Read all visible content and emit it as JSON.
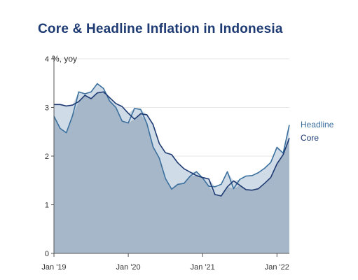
{
  "chart_data": {
    "type": "area",
    "title": "Core & Headline Inflation in Indonesia",
    "y_unit_label": "%, yoy",
    "ylim": [
      0,
      4
    ],
    "y_ticks": [
      0,
      1,
      2,
      3,
      4
    ],
    "x_ticks": [
      {
        "value": "2019-01",
        "label": "Jan '19"
      },
      {
        "value": "2020-01",
        "label": "Jan '20"
      },
      {
        "value": "2021-01",
        "label": "Jan '21"
      },
      {
        "value": "2022-01",
        "label": "Jan '22"
      }
    ],
    "x_range": [
      "2019-01",
      "2022-03"
    ],
    "grid": "horizontal",
    "legend_placement": "right-end-of-lines",
    "months": [
      "2019-01",
      "2019-02",
      "2019-03",
      "2019-04",
      "2019-05",
      "2019-06",
      "2019-07",
      "2019-08",
      "2019-09",
      "2019-10",
      "2019-11",
      "2019-12",
      "2020-01",
      "2020-02",
      "2020-03",
      "2020-04",
      "2020-05",
      "2020-06",
      "2020-07",
      "2020-08",
      "2020-09",
      "2020-10",
      "2020-11",
      "2020-12",
      "2021-01",
      "2021-02",
      "2021-03",
      "2021-04",
      "2021-05",
      "2021-06",
      "2021-07",
      "2021-08",
      "2021-09",
      "2021-10",
      "2021-11",
      "2021-12",
      "2022-01",
      "2022-02",
      "2022-03"
    ],
    "series": [
      {
        "name": "Headline",
        "color": "#3a6f9e",
        "values": [
          2.82,
          2.57,
          2.48,
          2.83,
          3.32,
          3.28,
          3.32,
          3.49,
          3.39,
          3.13,
          3.0,
          2.72,
          2.68,
          2.98,
          2.96,
          2.67,
          2.19,
          1.96,
          1.54,
          1.32,
          1.42,
          1.44,
          1.59,
          1.68,
          1.55,
          1.38,
          1.37,
          1.42,
          1.68,
          1.33,
          1.52,
          1.59,
          1.6,
          1.66,
          1.75,
          1.87,
          2.18,
          2.06,
          2.64
        ]
      },
      {
        "name": "Core",
        "color": "#1d3a73",
        "values": [
          3.06,
          3.06,
          3.03,
          3.05,
          3.12,
          3.25,
          3.18,
          3.3,
          3.32,
          3.2,
          3.08,
          3.02,
          2.88,
          2.76,
          2.87,
          2.85,
          2.65,
          2.26,
          2.07,
          2.03,
          1.86,
          1.74,
          1.67,
          1.6,
          1.56,
          1.53,
          1.21,
          1.18,
          1.37,
          1.49,
          1.4,
          1.31,
          1.3,
          1.33,
          1.44,
          1.56,
          1.84,
          2.03,
          2.37
        ]
      }
    ],
    "colors": {
      "area_fill": "#a5b7c9",
      "band_fill": "#cfdbe6",
      "grid": "#e6e6e6",
      "axis": "#555555"
    }
  }
}
